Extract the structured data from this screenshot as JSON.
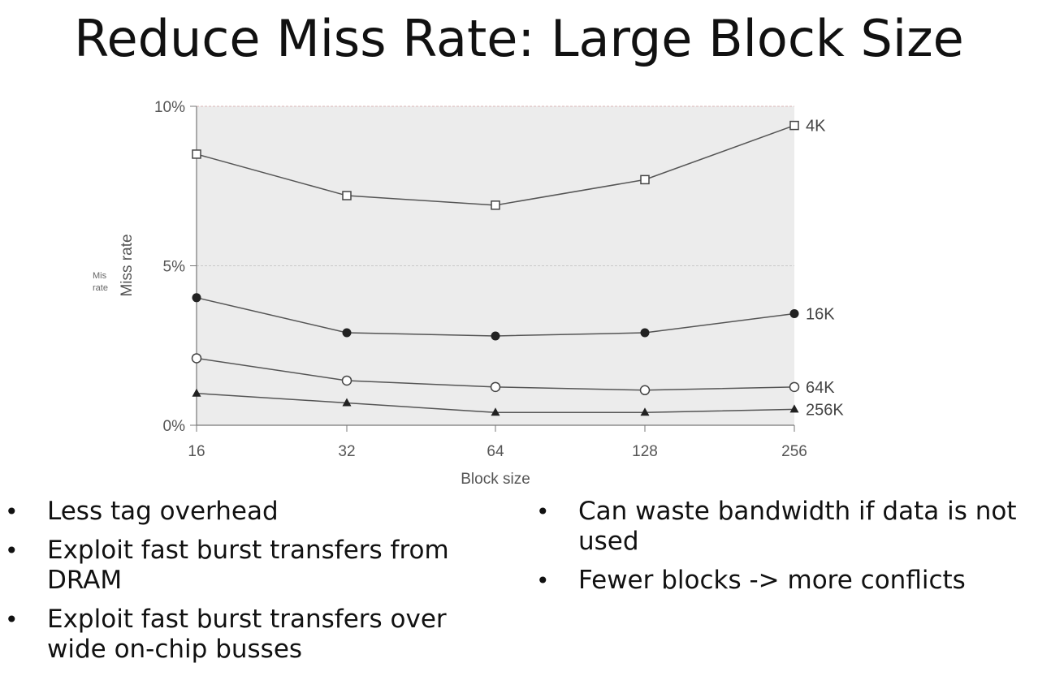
{
  "slide": {
    "title": "Reduce Miss Rate: Large Block Size",
    "bullets_left": [
      "Less tag overhead",
      "Exploit fast burst transfers from DRAM",
      "Exploit fast burst transfers over wide on-chip busses"
    ],
    "bullets_right": [
      "Can waste bandwidth if data is not used",
      "Fewer blocks -> more conflicts"
    ]
  },
  "chart_data": {
    "type": "line",
    "xlabel": "Block size",
    "ylabel": "Miss rate",
    "ylabel_overlay": [
      "Mis",
      "rate"
    ],
    "categories": [
      "16",
      "32",
      "64",
      "128",
      "256"
    ],
    "ylim": [
      0,
      10
    ],
    "yticks": [
      0,
      5,
      10
    ],
    "ytick_labels": [
      "0%",
      "5%",
      "10%"
    ],
    "grid": true,
    "plot_background": "#ececec",
    "line_color": "#555555",
    "series": [
      {
        "name": "4K",
        "marker": "open-square",
        "values": [
          8.5,
          7.2,
          6.9,
          7.7,
          9.4
        ]
      },
      {
        "name": "16K",
        "marker": "filled-circle",
        "values": [
          4.0,
          2.9,
          2.8,
          2.9,
          3.5
        ]
      },
      {
        "name": "64K",
        "marker": "open-circle",
        "values": [
          2.1,
          1.4,
          1.2,
          1.1,
          1.2
        ]
      },
      {
        "name": "256K",
        "marker": "filled-triangle",
        "values": [
          1.0,
          0.7,
          0.4,
          0.4,
          0.5
        ]
      }
    ]
  }
}
